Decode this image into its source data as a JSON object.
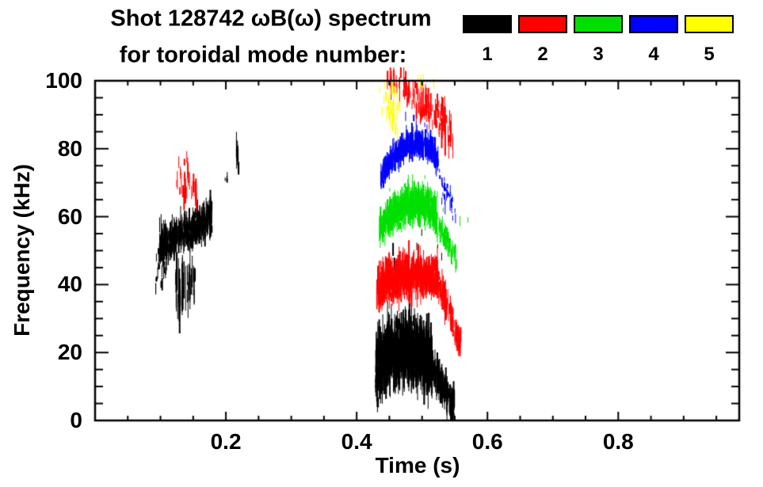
{
  "figure": {
    "shot": "128742",
    "title_line1": "Shot 128742 ωB(ω) spectrum",
    "title_line2": "for toroidal mode number:",
    "background": "#ffffff"
  },
  "chart_data": {
    "type": "scatter",
    "title": "Shot 128742 ωB(ω) spectrum for toroidal mode number: 1 2 3 4 5",
    "xlabel": "Time (s)",
    "ylabel": "Frequency (kHz)",
    "xlim": [
      0,
      0.985
    ],
    "ylim": [
      0,
      100
    ],
    "x_major_ticks": [
      0.2,
      0.4,
      0.6,
      0.8
    ],
    "x_minor_step": 0.05,
    "y_major_ticks": [
      0,
      20,
      40,
      60,
      80,
      100
    ],
    "y_minor_step": 5,
    "grid": false,
    "frame": "full-box-inward-ticks",
    "legend": {
      "position": "top-right",
      "entries": [
        {
          "label": "1",
          "color": "#000000"
        },
        {
          "label": "2",
          "color": "#ff0000"
        },
        {
          "label": "3",
          "color": "#00e000"
        },
        {
          "label": "4",
          "color": "#0000ff"
        },
        {
          "label": "5",
          "color": "#ffff00"
        }
      ]
    },
    "clusters": [
      {
        "name": "n1-early-core-55kHz",
        "mode": 1,
        "color": "#000000",
        "n": 430,
        "anchors": [
          [
            0.098,
            52
          ],
          [
            0.122,
            54
          ],
          [
            0.15,
            57
          ],
          [
            0.178,
            60
          ]
        ],
        "spread": 4,
        "streak": [
          2,
          8
        ]
      },
      {
        "name": "n1-early-low-scatter",
        "mode": 1,
        "color": "#000000",
        "n": 40,
        "anchors": [
          [
            0.088,
            44
          ],
          [
            0.115,
            47
          ]
        ],
        "spread": 5,
        "streak": [
          1,
          4
        ]
      },
      {
        "name": "n1-early-undertails",
        "mode": 1,
        "color": "#000000",
        "n": 50,
        "anchors": [
          [
            0.122,
            41
          ],
          [
            0.14,
            38
          ],
          [
            0.152,
            43
          ]
        ],
        "spread": 7,
        "streak": [
          3,
          14
        ]
      },
      {
        "name": "n1-speck-0p20s-71kHz",
        "mode": 1,
        "color": "#000000",
        "n": 5,
        "anchors": [
          [
            0.198,
            71
          ],
          [
            0.202,
            71
          ]
        ],
        "spread": 1.5,
        "streak": [
          1,
          3
        ]
      },
      {
        "name": "n1-streak-0p22s-79kHz",
        "mode": 1,
        "color": "#000000",
        "n": 14,
        "anchors": [
          [
            0.215,
            79
          ],
          [
            0.219,
            79
          ]
        ],
        "spread": 4,
        "streak": [
          2,
          7
        ]
      },
      {
        "name": "n1-main-band-20kHz",
        "mode": 1,
        "color": "#000000",
        "n": 950,
        "anchors": [
          [
            0.428,
            15
          ],
          [
            0.45,
            20
          ],
          [
            0.48,
            21
          ],
          [
            0.515,
            18
          ]
        ],
        "spread": 7.5,
        "streak": [
          2,
          13
        ]
      },
      {
        "name": "n1-main-downchirp",
        "mode": 1,
        "color": "#000000",
        "n": 170,
        "anchors": [
          [
            0.515,
            16
          ],
          [
            0.53,
            10
          ],
          [
            0.549,
            4
          ]
        ],
        "spread": 4.5,
        "streak": [
          2,
          8
        ]
      },
      {
        "name": "n1-mid-debris",
        "mode": 1,
        "color": "#000000",
        "n": 22,
        "anchors": [
          [
            0.45,
            46
          ],
          [
            0.53,
            44
          ]
        ],
        "spread": 9,
        "streak": [
          1,
          4
        ]
      },
      {
        "name": "n2-early-scatter-70kHz",
        "mode": 2,
        "color": "#ff0000",
        "n": 36,
        "anchors": [
          [
            0.124,
            73
          ],
          [
            0.14,
            70
          ],
          [
            0.157,
            66
          ]
        ],
        "spread": 5.5,
        "streak": [
          2,
          7
        ]
      },
      {
        "name": "n2-main-band-42kHz",
        "mode": 2,
        "color": "#ff0000",
        "n": 620,
        "anchors": [
          [
            0.43,
            39
          ],
          [
            0.46,
            42
          ],
          [
            0.49,
            43
          ],
          [
            0.523,
            42
          ]
        ],
        "spread": 4.5,
        "streak": [
          2,
          9
        ]
      },
      {
        "name": "n2-main-downchirp",
        "mode": 2,
        "color": "#ff0000",
        "n": 120,
        "anchors": [
          [
            0.524,
            41
          ],
          [
            0.54,
            33
          ],
          [
            0.558,
            23
          ]
        ],
        "spread": 4,
        "streak": [
          2,
          7
        ]
      },
      {
        "name": "n2-high-freq-band-90to100kHz",
        "mode": 2,
        "color": "#ff0000",
        "n": 120,
        "anchors": [
          [
            0.446,
            101
          ],
          [
            0.47,
            98
          ],
          [
            0.5,
            94
          ],
          [
            0.53,
            88
          ],
          [
            0.548,
            83
          ]
        ],
        "spread": 5,
        "streak": [
          2,
          9
        ]
      },
      {
        "name": "n3-main-band-62kHz",
        "mode": 3,
        "color": "#00e000",
        "n": 480,
        "anchors": [
          [
            0.434,
            56
          ],
          [
            0.455,
            61
          ],
          [
            0.48,
            64
          ],
          [
            0.5,
            64
          ],
          [
            0.521,
            61
          ]
        ],
        "spread": 4,
        "streak": [
          2,
          8
        ]
      },
      {
        "name": "n3-main-downchirp",
        "mode": 3,
        "color": "#00e000",
        "n": 55,
        "anchors": [
          [
            0.522,
            58
          ],
          [
            0.54,
            52
          ],
          [
            0.553,
            47
          ]
        ],
        "spread": 3,
        "streak": [
          2,
          6
        ]
      },
      {
        "name": "n3-debris",
        "mode": 3,
        "color": "#00e000",
        "n": 12,
        "anchors": [
          [
            0.44,
            70
          ],
          [
            0.57,
            60
          ]
        ],
        "spread": 9,
        "streak": [
          1,
          3
        ]
      },
      {
        "name": "n4-main-arc-80kHz",
        "mode": 4,
        "color": "#0000ff",
        "n": 400,
        "anchors": [
          [
            0.436,
            72
          ],
          [
            0.455,
            78
          ],
          [
            0.475,
            81
          ],
          [
            0.497,
            82
          ],
          [
            0.512,
            80
          ],
          [
            0.524,
            76
          ]
        ],
        "spread": 3,
        "streak": [
          2,
          6
        ]
      },
      {
        "name": "n4-main-downchirp",
        "mode": 4,
        "color": "#0000ff",
        "n": 30,
        "anchors": [
          [
            0.526,
            71
          ],
          [
            0.54,
            65
          ],
          [
            0.551,
            59
          ]
        ],
        "spread": 4,
        "streak": [
          1,
          4
        ]
      },
      {
        "name": "n4-high-debris",
        "mode": 4,
        "color": "#0000ff",
        "n": 10,
        "anchors": [
          [
            0.47,
            87
          ],
          [
            0.53,
            85
          ]
        ],
        "spread": 4,
        "streak": [
          1,
          3
        ]
      },
      {
        "name": "n5-high-freq-specks-90to100kHz",
        "mode": 5,
        "color": "#ffff00",
        "n": 30,
        "anchors": [
          [
            0.434,
            96
          ],
          [
            0.452,
            92
          ],
          [
            0.466,
            89
          ]
        ],
        "spread": 6,
        "streak": [
          2,
          6
        ]
      },
      {
        "name": "n5-top-edge-specks",
        "mode": 5,
        "color": "#ffff00",
        "n": 8,
        "anchors": [
          [
            0.49,
            100
          ],
          [
            0.522,
            100
          ]
        ],
        "spread": 2,
        "streak": [
          1,
          4
        ]
      }
    ]
  }
}
